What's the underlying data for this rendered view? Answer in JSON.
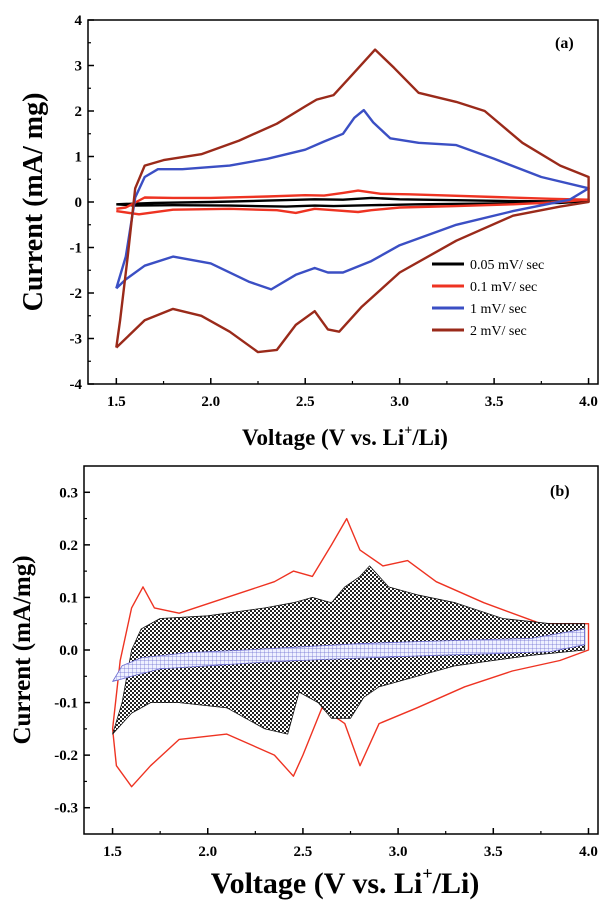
{
  "chart_data": [
    {
      "type": "line",
      "panel_label": "(a)",
      "xlabel_prefix": "Voltage (V vs. Li",
      "xlabel_sup": "+",
      "xlabel_suffix": "/Li)",
      "ylabel": "Current (mA/ mg)",
      "xlim": [
        1.35,
        4.05
      ],
      "ylim": [
        -4,
        4
      ],
      "xticks": [
        "1.5",
        "2.0",
        "2.5",
        "3.0",
        "3.5",
        "4.0"
      ],
      "yticks": [
        "4",
        "3",
        "2",
        "1",
        "0",
        "-1",
        "-2",
        "-3",
        "-4"
      ],
      "legend_position": "bottom-right",
      "series": [
        {
          "name": "0.05 mV/ sec",
          "color": "#000000",
          "points": [
            [
              1.5,
              -0.05
            ],
            [
              1.7,
              -0.02
            ],
            [
              2.0,
              0.0
            ],
            [
              2.3,
              0.03
            ],
            [
              2.55,
              0.06
            ],
            [
              2.7,
              0.05
            ],
            [
              2.85,
              0.09
            ],
            [
              3.0,
              0.06
            ],
            [
              3.3,
              0.04
            ],
            [
              3.6,
              0.02
            ],
            [
              3.85,
              0.01
            ],
            [
              4.0,
              0.02
            ],
            [
              3.85,
              -0.02
            ],
            [
              3.5,
              -0.03
            ],
            [
              3.1,
              -0.05
            ],
            [
              2.85,
              -0.07
            ],
            [
              2.65,
              -0.09
            ],
            [
              2.55,
              -0.08
            ],
            [
              2.4,
              -0.1
            ],
            [
              2.1,
              -0.08
            ],
            [
              1.8,
              -0.07
            ],
            [
              1.6,
              -0.08
            ],
            [
              1.5,
              -0.05
            ]
          ]
        },
        {
          "name": "0.1 mV/ sec",
          "color": "#ee3322",
          "points": [
            [
              1.5,
              -0.15
            ],
            [
              1.55,
              -0.12
            ],
            [
              1.65,
              0.1
            ],
            [
              1.8,
              0.09
            ],
            [
              2.0,
              0.09
            ],
            [
              2.3,
              0.12
            ],
            [
              2.5,
              0.15
            ],
            [
              2.6,
              0.14
            ],
            [
              2.7,
              0.2
            ],
            [
              2.78,
              0.25
            ],
            [
              2.9,
              0.18
            ],
            [
              3.05,
              0.17
            ],
            [
              3.2,
              0.15
            ],
            [
              3.5,
              0.11
            ],
            [
              3.8,
              0.07
            ],
            [
              4.0,
              0.05
            ],
            [
              3.8,
              -0.01
            ],
            [
              3.6,
              -0.05
            ],
            [
              3.3,
              -0.09
            ],
            [
              3.0,
              -0.12
            ],
            [
              2.85,
              -0.18
            ],
            [
              2.78,
              -0.22
            ],
            [
              2.65,
              -0.18
            ],
            [
              2.55,
              -0.15
            ],
            [
              2.45,
              -0.24
            ],
            [
              2.35,
              -0.18
            ],
            [
              2.1,
              -0.15
            ],
            [
              1.8,
              -0.17
            ],
            [
              1.62,
              -0.27
            ],
            [
              1.5,
              -0.2
            ]
          ]
        },
        {
          "name": "1 mV/ sec",
          "color": "#3b4fc4",
          "points": [
            [
              1.5,
              -1.9
            ],
            [
              1.55,
              -1.2
            ],
            [
              1.6,
              0.1
            ],
            [
              1.65,
              0.55
            ],
            [
              1.72,
              0.72
            ],
            [
              1.85,
              0.72
            ],
            [
              2.1,
              0.8
            ],
            [
              2.3,
              0.95
            ],
            [
              2.5,
              1.15
            ],
            [
              2.6,
              1.33
            ],
            [
              2.7,
              1.5
            ],
            [
              2.76,
              1.85
            ],
            [
              2.81,
              2.02
            ],
            [
              2.86,
              1.75
            ],
            [
              2.95,
              1.4
            ],
            [
              3.1,
              1.3
            ],
            [
              3.3,
              1.25
            ],
            [
              3.5,
              0.95
            ],
            [
              3.75,
              0.55
            ],
            [
              4.0,
              0.3
            ],
            [
              3.9,
              0.05
            ],
            [
              3.6,
              -0.2
            ],
            [
              3.3,
              -0.5
            ],
            [
              3.0,
              -0.95
            ],
            [
              2.85,
              -1.3
            ],
            [
              2.7,
              -1.55
            ],
            [
              2.62,
              -1.55
            ],
            [
              2.55,
              -1.45
            ],
            [
              2.45,
              -1.6
            ],
            [
              2.32,
              -1.92
            ],
            [
              2.2,
              -1.75
            ],
            [
              2.0,
              -1.35
            ],
            [
              1.8,
              -1.2
            ],
            [
              1.65,
              -1.4
            ],
            [
              1.55,
              -1.7
            ],
            [
              1.5,
              -1.9
            ]
          ]
        },
        {
          "name": "2 mV/ sec",
          "color": "#9a2a1a",
          "points": [
            [
              1.5,
              -3.2
            ],
            [
              1.52,
              -2.6
            ],
            [
              1.56,
              -1.2
            ],
            [
              1.6,
              0.3
            ],
            [
              1.65,
              0.8
            ],
            [
              1.75,
              0.92
            ],
            [
              1.95,
              1.05
            ],
            [
              2.15,
              1.35
            ],
            [
              2.35,
              1.72
            ],
            [
              2.5,
              2.1
            ],
            [
              2.56,
              2.25
            ],
            [
              2.65,
              2.35
            ],
            [
              2.75,
              2.8
            ],
            [
              2.87,
              3.35
            ],
            [
              2.97,
              2.95
            ],
            [
              3.1,
              2.4
            ],
            [
              3.3,
              2.2
            ],
            [
              3.45,
              2.0
            ],
            [
              3.65,
              1.3
            ],
            [
              3.85,
              0.8
            ],
            [
              4.0,
              0.55
            ],
            [
              4.0,
              0.0
            ],
            [
              3.85,
              -0.1
            ],
            [
              3.6,
              -0.3
            ],
            [
              3.3,
              -0.85
            ],
            [
              3.0,
              -1.55
            ],
            [
              2.8,
              -2.3
            ],
            [
              2.68,
              -2.85
            ],
            [
              2.62,
              -2.8
            ],
            [
              2.55,
              -2.4
            ],
            [
              2.45,
              -2.7
            ],
            [
              2.35,
              -3.25
            ],
            [
              2.25,
              -3.3
            ],
            [
              2.1,
              -2.85
            ],
            [
              1.95,
              -2.5
            ],
            [
              1.8,
              -2.35
            ],
            [
              1.65,
              -2.6
            ],
            [
              1.55,
              -3.0
            ],
            [
              1.5,
              -3.2
            ]
          ]
        }
      ]
    },
    {
      "type": "area",
      "panel_label": "(b)",
      "xlabel_prefix": "Voltage (V vs. Li",
      "xlabel_sup": "+",
      "xlabel_suffix": "/Li)",
      "ylabel": "Current (mA/mg)",
      "xlim": [
        1.35,
        4.05
      ],
      "ylim": [
        -0.35,
        0.35
      ],
      "xticks": [
        "1.5",
        "2.0",
        "2.5",
        "3.0",
        "3.5",
        "4.0"
      ],
      "yticks": [
        "0.3",
        "0.2",
        "0.1",
        "0.0",
        "-0.1",
        "-0.2",
        "-0.3"
      ],
      "series": [
        {
          "style": "outline",
          "color": "#ee3322",
          "points": [
            [
              1.5,
              -0.15
            ],
            [
              1.54,
              -0.02
            ],
            [
              1.6,
              0.08
            ],
            [
              1.66,
              0.12
            ],
            [
              1.72,
              0.08
            ],
            [
              1.85,
              0.07
            ],
            [
              2.1,
              0.1
            ],
            [
              2.35,
              0.13
            ],
            [
              2.45,
              0.15
            ],
            [
              2.55,
              0.14
            ],
            [
              2.65,
              0.2
            ],
            [
              2.73,
              0.25
            ],
            [
              2.8,
              0.19
            ],
            [
              2.92,
              0.16
            ],
            [
              3.05,
              0.17
            ],
            [
              3.2,
              0.13
            ],
            [
              3.45,
              0.09
            ],
            [
              3.75,
              0.05
            ],
            [
              4.0,
              0.05
            ],
            [
              4.0,
              0.0
            ],
            [
              3.85,
              -0.02
            ],
            [
              3.6,
              -0.04
            ],
            [
              3.35,
              -0.07
            ],
            [
              3.1,
              -0.11
            ],
            [
              2.9,
              -0.14
            ],
            [
              2.8,
              -0.22
            ],
            [
              2.72,
              -0.14
            ],
            [
              2.6,
              -0.11
            ],
            [
              2.5,
              -0.2
            ],
            [
              2.45,
              -0.24
            ],
            [
              2.35,
              -0.2
            ],
            [
              2.1,
              -0.16
            ],
            [
              1.85,
              -0.17
            ],
            [
              1.7,
              -0.22
            ],
            [
              1.6,
              -0.26
            ],
            [
              1.52,
              -0.22
            ],
            [
              1.5,
              -0.15
            ]
          ]
        },
        {
          "style": "hatched",
          "color": "#222222",
          "points": [
            [
              1.5,
              -0.16
            ],
            [
              1.55,
              -0.1
            ],
            [
              1.6,
              0.0
            ],
            [
              1.65,
              0.04
            ],
            [
              1.75,
              0.06
            ],
            [
              2.0,
              0.065
            ],
            [
              2.3,
              0.08
            ],
            [
              2.45,
              0.09
            ],
            [
              2.55,
              0.1
            ],
            [
              2.65,
              0.09
            ],
            [
              2.72,
              0.12
            ],
            [
              2.8,
              0.14
            ],
            [
              2.85,
              0.16
            ],
            [
              2.95,
              0.12
            ],
            [
              3.1,
              0.105
            ],
            [
              3.3,
              0.09
            ],
            [
              3.55,
              0.06
            ],
            [
              3.8,
              0.05
            ],
            [
              3.98,
              0.05
            ],
            [
              3.98,
              0.0
            ],
            [
              3.7,
              -0.01
            ],
            [
              3.5,
              -0.02
            ],
            [
              3.3,
              -0.03
            ],
            [
              3.1,
              -0.05
            ],
            [
              2.9,
              -0.07
            ],
            [
              2.82,
              -0.09
            ],
            [
              2.75,
              -0.13
            ],
            [
              2.65,
              -0.13
            ],
            [
              2.58,
              -0.1
            ],
            [
              2.48,
              -0.08
            ],
            [
              2.42,
              -0.16
            ],
            [
              2.3,
              -0.15
            ],
            [
              2.1,
              -0.11
            ],
            [
              1.85,
              -0.1
            ],
            [
              1.7,
              -0.1
            ],
            [
              1.6,
              -0.12
            ],
            [
              1.5,
              -0.16
            ]
          ]
        },
        {
          "style": "grid",
          "color": "#6a6ad0",
          "points": [
            [
              1.5,
              -0.06
            ],
            [
              1.55,
              -0.03
            ],
            [
              1.65,
              -0.015
            ],
            [
              1.9,
              -0.005
            ],
            [
              2.2,
              0.0
            ],
            [
              2.5,
              0.006
            ],
            [
              2.8,
              0.012
            ],
            [
              3.1,
              0.016
            ],
            [
              3.4,
              0.019
            ],
            [
              3.7,
              0.022
            ],
            [
              3.98,
              0.04
            ],
            [
              3.98,
              0.01
            ],
            [
              3.8,
              -0.003
            ],
            [
              3.5,
              -0.007
            ],
            [
              3.2,
              -0.01
            ],
            [
              2.9,
              -0.014
            ],
            [
              2.6,
              -0.018
            ],
            [
              2.3,
              -0.023
            ],
            [
              2.0,
              -0.03
            ],
            [
              1.75,
              -0.036
            ],
            [
              1.6,
              -0.05
            ],
            [
              1.5,
              -0.06
            ]
          ]
        }
      ]
    }
  ]
}
